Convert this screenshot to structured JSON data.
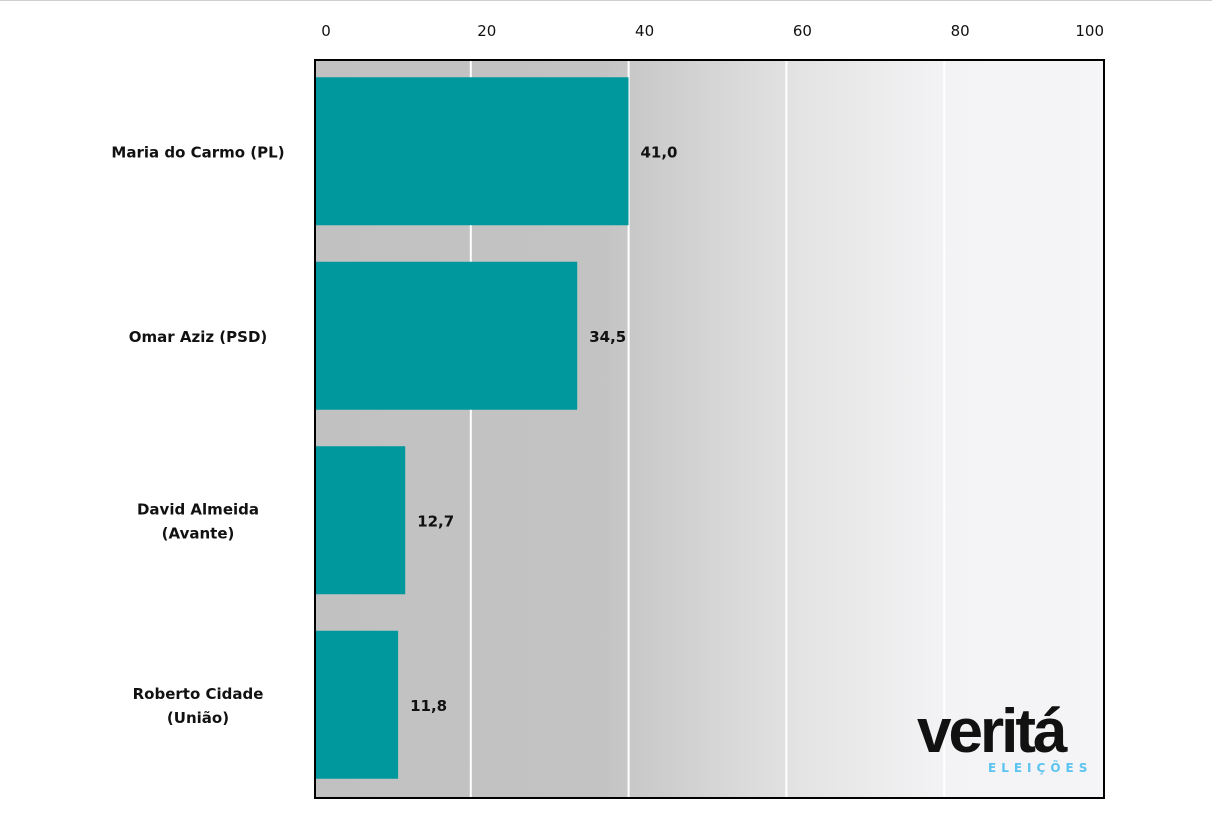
{
  "chart_data": {
    "type": "bar",
    "orientation": "horizontal",
    "title": "",
    "xlabel": "",
    "ylabel": "",
    "xlim": [
      0,
      100
    ],
    "x_ticks": [
      "0",
      "20",
      "40",
      "60",
      "80",
      "100"
    ],
    "x_tick_values": [
      0,
      20,
      40,
      60,
      80,
      100
    ],
    "x_axis_position": "top",
    "grid": true,
    "categories": [
      [
        "Maria do Carmo (PL)"
      ],
      [
        "Omar Aziz (PSD)"
      ],
      [
        "David Almeida",
        "(Avante)"
      ],
      [
        "Roberto Cidade",
        "(União)"
      ]
    ],
    "values": [
      41.0,
      34.5,
      12.7,
      11.8
    ],
    "value_labels": [
      "41,0",
      "34,5",
      "12,7",
      "11,8"
    ],
    "bar_color": "#00979d"
  },
  "logo": {
    "text": "veritá",
    "subtext": "ELEIÇÕES",
    "accent": "#5bc4f0"
  }
}
